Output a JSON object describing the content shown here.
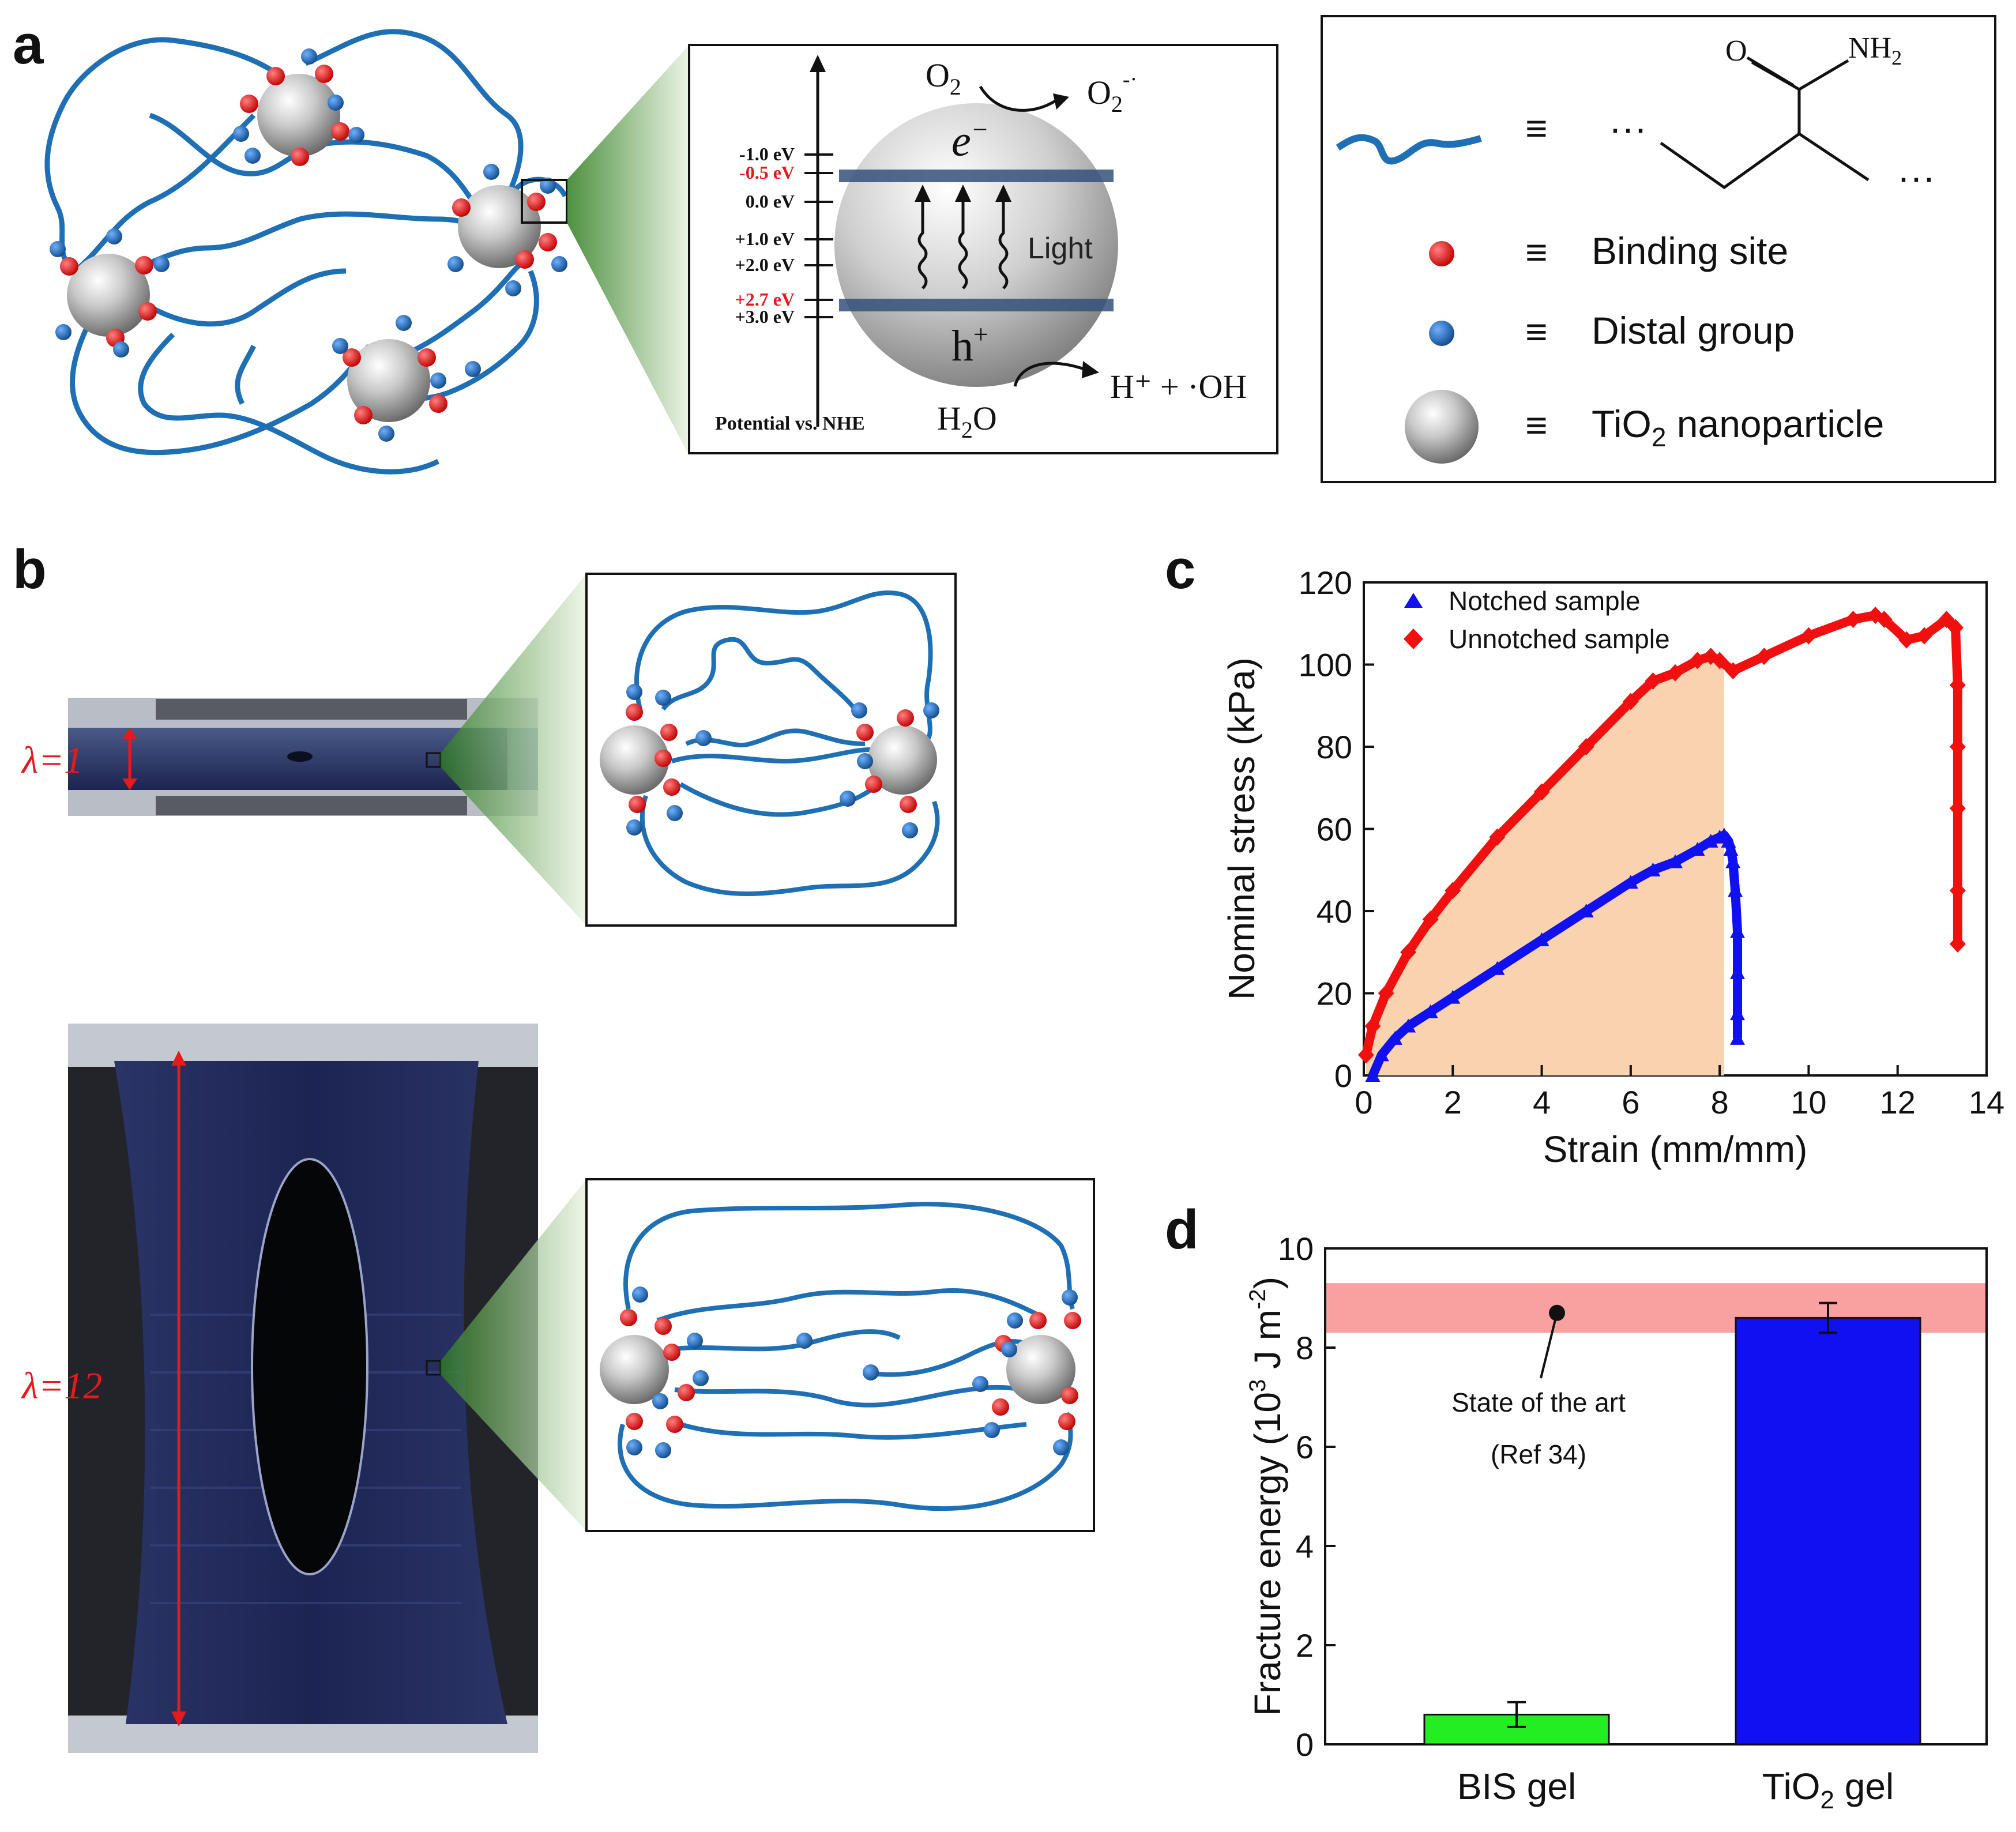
{
  "panels": {
    "a": "a",
    "b": "b",
    "c": "c",
    "d": "d"
  },
  "panel_a": {
    "energy_levels": [
      {
        "label": "-1.0 eV",
        "color": "#111111"
      },
      {
        "label": "-0.5 eV",
        "color": "#e41a1c"
      },
      {
        "label": "0.0 eV",
        "color": "#111111"
      },
      {
        "label": "+1.0 eV",
        "color": "#111111"
      },
      {
        "label": "+2.0 eV",
        "color": "#111111"
      },
      {
        "label": "+2.7 eV",
        "color": "#e41a1c"
      },
      {
        "label": "+3.0 eV",
        "color": "#111111"
      }
    ],
    "axis_label": "Potential vs. NHE",
    "o2": "O",
    "o2_sub": "2",
    "o2_rad": "O",
    "o2_rad_sub": "2",
    "o2_rad_sup": "-·",
    "electron": "e",
    "electron_sup": "−",
    "hole": "h",
    "hole_sup": "+",
    "light": "Light",
    "water": "H",
    "water_sub": "2",
    "water_tail": "O",
    "products": "H⁺ + ·OH"
  },
  "key": {
    "equiv": "≡",
    "dots": "···",
    "o_label": "O",
    "nh2_label": "NH",
    "nh2_sub": "2",
    "binding_site": "Binding site",
    "distal_group": "Distal group",
    "tio2_prefix": "TiO",
    "tio2_sub": "2",
    "tio2_suffix": " nanoparticle"
  },
  "panel_b": {
    "lambda1": "λ=1",
    "lambda12": "λ=12"
  },
  "colors": {
    "chain": "#1f6fb5",
    "binding": "#e41a1c",
    "distal": "#1f5fa8",
    "green_cone": "#2e7d1f",
    "notched": "#1010f0",
    "unnotched": "#f01010",
    "shade": "#f9d3b0"
  },
  "chart_c": {
    "type": "line",
    "xlabel": "Strain (mm/mm)",
    "ylabel": "Nominal stress (kPa)",
    "xlim": [
      0,
      14
    ],
    "ylim": [
      0,
      120
    ],
    "xticks": [
      0,
      2,
      4,
      6,
      8,
      10,
      12,
      14
    ],
    "yticks": [
      0,
      20,
      40,
      60,
      80,
      100,
      120
    ],
    "legend_position": "top-left",
    "shade_x_max": 8.1,
    "series": [
      {
        "name": "Notched sample",
        "marker": "triangle",
        "x": [
          0.2,
          0.4,
          0.7,
          1.0,
          1.5,
          2.0,
          3.0,
          4.0,
          5.0,
          6.0,
          6.5,
          7.0,
          7.5,
          7.8,
          8.0,
          8.1,
          8.2,
          8.25,
          8.3,
          8.35,
          8.4,
          8.4,
          8.4,
          8.4
        ],
        "y": [
          0,
          5,
          9,
          12,
          15.5,
          19,
          26,
          33,
          40,
          47,
          50,
          52,
          55,
          57,
          58,
          58.5,
          57,
          55,
          52,
          45,
          35,
          25,
          15,
          9
        ]
      },
      {
        "name": "Unnotched sample",
        "marker": "diamond",
        "x": [
          0.05,
          0.2,
          0.5,
          1.0,
          1.5,
          2.0,
          3.0,
          4.0,
          5.0,
          6.0,
          6.5,
          7.0,
          7.5,
          7.8,
          8.0,
          8.3,
          9.0,
          10.0,
          11.0,
          11.5,
          11.7,
          12.2,
          12.6,
          13.1,
          13.3,
          13.35,
          13.35,
          13.35,
          13.35,
          13.35
        ],
        "y": [
          5,
          12,
          20,
          30,
          38,
          45,
          58,
          69,
          80,
          91,
          96,
          98,
          101,
          102,
          101,
          98.5,
          102,
          107,
          111,
          112,
          111,
          106,
          107,
          111,
          109,
          95,
          80,
          65,
          45,
          32
        ]
      }
    ]
  },
  "chart_d": {
    "type": "bar",
    "categories": [
      "BIS gel",
      "TiO2 gel"
    ],
    "category_labels": [
      {
        "main": "BIS gel",
        "sub": ""
      },
      {
        "main": "TiO",
        "sub": "2",
        "tail": " gel"
      }
    ],
    "values": [
      0.6,
      8.6
    ],
    "errors": [
      0.25,
      0.3
    ],
    "bar_colors": [
      "#22ee22",
      "#1010f0"
    ],
    "ylabel_main": "Fracture energy (10",
    "ylabel_sup": "3",
    "ylabel_mid": " J m",
    "ylabel_sup2": "-2",
    "ylabel_tail": ")",
    "ylim": [
      0,
      10
    ],
    "yticks": [
      0,
      2,
      4,
      6,
      8,
      10
    ],
    "band": [
      8.3,
      9.3
    ],
    "annotation_line1": "State of the art",
    "annotation_line2": "(Ref 34)",
    "annotation_point": 8.7
  }
}
